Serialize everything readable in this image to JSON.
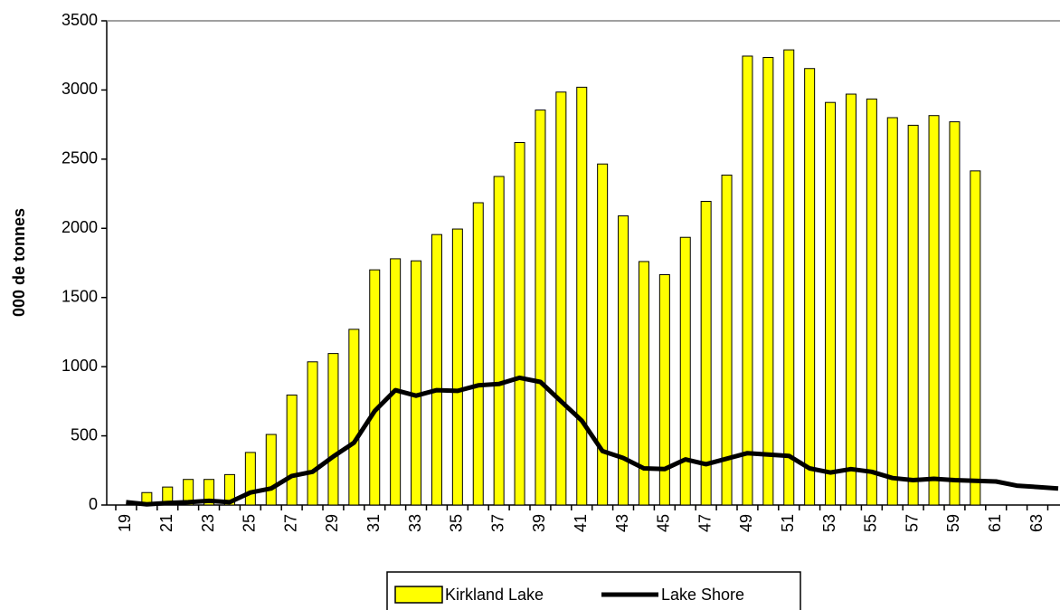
{
  "chart_data": {
    "type": "bar_line",
    "y_label": "000 de tonnes",
    "categories": [
      "19",
      null,
      "21",
      null,
      "23",
      null,
      "25",
      null,
      "27",
      null,
      "29",
      null,
      "31",
      null,
      "33",
      null,
      "35",
      null,
      "37",
      null,
      "39",
      null,
      "41",
      null,
      "43",
      null,
      "45",
      null,
      "47",
      null,
      "49",
      null,
      "51",
      null,
      "53",
      null,
      "55",
      null,
      "57",
      null,
      "59",
      null,
      "61",
      null,
      "63",
      null
    ],
    "series": [
      {
        "name": "Kirkland Lake",
        "type": "bar",
        "color": "#ffff00",
        "values": [
          null,
          90,
          130,
          185,
          185,
          220,
          380,
          510,
          795,
          1035,
          1095,
          1270,
          1700,
          1780,
          1765,
          1955,
          1995,
          2185,
          2375,
          2620,
          2855,
          2985,
          3020,
          2465,
          2090,
          1760,
          1665,
          1935,
          2195,
          2385,
          3245,
          3235,
          3290,
          3155,
          2910,
          2970,
          2935,
          2800,
          2745,
          2815,
          2770,
          2415,
          null,
          null,
          null,
          null
        ]
      },
      {
        "name": "Lake Shore",
        "type": "line",
        "color": "#000000",
        "values": [
          20,
          5,
          15,
          20,
          30,
          20,
          90,
          120,
          210,
          240,
          350,
          450,
          680,
          830,
          790,
          830,
          825,
          865,
          875,
          920,
          890,
          750,
          610,
          390,
          340,
          265,
          260,
          330,
          295,
          335,
          375,
          365,
          355,
          265,
          235,
          260,
          240,
          195,
          180,
          190,
          180,
          175,
          170,
          140,
          130,
          120
        ]
      }
    ],
    "ylim": [
      0,
      3500
    ],
    "yticks": [
      0,
      500,
      1000,
      1500,
      2000,
      2500,
      3000,
      3500
    ],
    "grid": false,
    "legend": "bottom"
  }
}
